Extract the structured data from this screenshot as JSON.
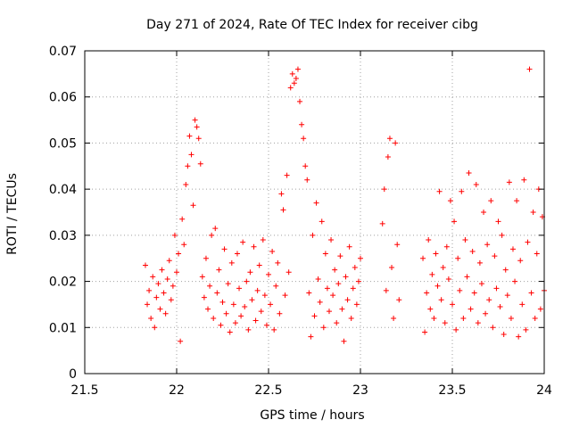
{
  "chart_data": {
    "type": "scatter",
    "title": "Day 271 of 2024, Rate Of TEC Index for receiver cibg",
    "xlabel": "GPS time / hours",
    "ylabel": "ROTI / TECUs",
    "xlim": [
      21.5,
      24
    ],
    "ylim": [
      0,
      0.07
    ],
    "x_ticks": [
      21.5,
      22,
      22.5,
      23,
      23.5,
      24
    ],
    "x_tick_labels": [
      "21.5",
      "22",
      "22.5",
      "23",
      "23.5",
      "24"
    ],
    "y_ticks": [
      0,
      0.01,
      0.02,
      0.03,
      0.04,
      0.05,
      0.06,
      0.07
    ],
    "y_tick_labels": [
      "0",
      "0.01",
      "0.02",
      "0.03",
      "0.04",
      "0.05",
      "0.06",
      "0.07"
    ],
    "grid": true,
    "marker": "+",
    "marker_color": "#ff0000",
    "series": [
      {
        "name": "ROTI",
        "points": [
          [
            21.83,
            0.0235
          ],
          [
            21.84,
            0.015
          ],
          [
            21.85,
            0.018
          ],
          [
            21.86,
            0.012
          ],
          [
            21.87,
            0.021
          ],
          [
            21.88,
            0.01
          ],
          [
            21.89,
            0.0165
          ],
          [
            21.9,
            0.0195
          ],
          [
            21.91,
            0.014
          ],
          [
            21.92,
            0.0225
          ],
          [
            21.93,
            0.0175
          ],
          [
            21.94,
            0.013
          ],
          [
            21.95,
            0.0205
          ],
          [
            21.96,
            0.0245
          ],
          [
            21.97,
            0.016
          ],
          [
            21.98,
            0.019
          ],
          [
            21.99,
            0.03
          ],
          [
            22.0,
            0.022
          ],
          [
            22.01,
            0.026
          ],
          [
            22.02,
            0.007
          ],
          [
            22.03,
            0.0335
          ],
          [
            22.04,
            0.028
          ],
          [
            22.05,
            0.041
          ],
          [
            22.06,
            0.045
          ],
          [
            22.07,
            0.0515
          ],
          [
            22.08,
            0.0475
          ],
          [
            22.09,
            0.0365
          ],
          [
            22.1,
            0.055
          ],
          [
            22.11,
            0.0535
          ],
          [
            22.12,
            0.051
          ],
          [
            22.13,
            0.0455
          ],
          [
            22.14,
            0.021
          ],
          [
            22.15,
            0.0165
          ],
          [
            22.16,
            0.025
          ],
          [
            22.17,
            0.014
          ],
          [
            22.18,
            0.019
          ],
          [
            22.19,
            0.03
          ],
          [
            22.2,
            0.012
          ],
          [
            22.21,
            0.0315
          ],
          [
            22.22,
            0.0175
          ],
          [
            22.23,
            0.0225
          ],
          [
            22.24,
            0.0105
          ],
          [
            22.25,
            0.0155
          ],
          [
            22.26,
            0.027
          ],
          [
            22.27,
            0.013
          ],
          [
            22.28,
            0.0195
          ],
          [
            22.29,
            0.009
          ],
          [
            22.3,
            0.024
          ],
          [
            22.31,
            0.015
          ],
          [
            22.32,
            0.011
          ],
          [
            22.33,
            0.026
          ],
          [
            22.34,
            0.0185
          ],
          [
            22.35,
            0.0125
          ],
          [
            22.36,
            0.0285
          ],
          [
            22.37,
            0.0145
          ],
          [
            22.38,
            0.02
          ],
          [
            22.39,
            0.0095
          ],
          [
            22.4,
            0.022
          ],
          [
            22.41,
            0.016
          ],
          [
            22.42,
            0.0275
          ],
          [
            22.43,
            0.0115
          ],
          [
            22.44,
            0.018
          ],
          [
            22.45,
            0.0235
          ],
          [
            22.46,
            0.0135
          ],
          [
            22.47,
            0.029
          ],
          [
            22.48,
            0.017
          ],
          [
            22.49,
            0.0105
          ],
          [
            22.5,
            0.0215
          ],
          [
            22.51,
            0.015
          ],
          [
            22.52,
            0.0265
          ],
          [
            22.53,
            0.0095
          ],
          [
            22.54,
            0.019
          ],
          [
            22.55,
            0.024
          ],
          [
            22.56,
            0.013
          ],
          [
            22.57,
            0.039
          ],
          [
            22.58,
            0.0355
          ],
          [
            22.59,
            0.017
          ],
          [
            22.6,
            0.043
          ],
          [
            22.61,
            0.022
          ],
          [
            22.62,
            0.062
          ],
          [
            22.63,
            0.065
          ],
          [
            22.64,
            0.063
          ],
          [
            22.65,
            0.064
          ],
          [
            22.66,
            0.066
          ],
          [
            22.67,
            0.059
          ],
          [
            22.68,
            0.054
          ],
          [
            22.69,
            0.051
          ],
          [
            22.7,
            0.045
          ],
          [
            22.71,
            0.042
          ],
          [
            22.72,
            0.0175
          ],
          [
            22.73,
            0.008
          ],
          [
            22.74,
            0.03
          ],
          [
            22.75,
            0.0125
          ],
          [
            22.76,
            0.037
          ],
          [
            22.77,
            0.0205
          ],
          [
            22.78,
            0.0155
          ],
          [
            22.79,
            0.033
          ],
          [
            22.8,
            0.01
          ],
          [
            22.81,
            0.026
          ],
          [
            22.82,
            0.0185
          ],
          [
            22.83,
            0.0135
          ],
          [
            22.84,
            0.029
          ],
          [
            22.85,
            0.017
          ],
          [
            22.86,
            0.0225
          ],
          [
            22.87,
            0.011
          ],
          [
            22.88,
            0.0195
          ],
          [
            22.89,
            0.0255
          ],
          [
            22.9,
            0.014
          ],
          [
            22.91,
            0.007
          ],
          [
            22.92,
            0.021
          ],
          [
            22.93,
            0.016
          ],
          [
            22.94,
            0.0275
          ],
          [
            22.95,
            0.012
          ],
          [
            22.96,
            0.0185
          ],
          [
            22.97,
            0.023
          ],
          [
            22.98,
            0.015
          ],
          [
            22.99,
            0.02
          ],
          [
            23.0,
            0.025
          ],
          [
            23.12,
            0.0325
          ],
          [
            23.13,
            0.04
          ],
          [
            23.14,
            0.018
          ],
          [
            23.15,
            0.047
          ],
          [
            23.16,
            0.051
          ],
          [
            23.17,
            0.023
          ],
          [
            23.18,
            0.012
          ],
          [
            23.19,
            0.05
          ],
          [
            23.2,
            0.028
          ],
          [
            23.21,
            0.016
          ],
          [
            23.34,
            0.025
          ],
          [
            23.35,
            0.009
          ],
          [
            23.36,
            0.0175
          ],
          [
            23.37,
            0.029
          ],
          [
            23.38,
            0.014
          ],
          [
            23.39,
            0.0215
          ],
          [
            23.4,
            0.012
          ],
          [
            23.41,
            0.026
          ],
          [
            23.42,
            0.019
          ],
          [
            23.43,
            0.0395
          ],
          [
            23.44,
            0.016
          ],
          [
            23.45,
            0.023
          ],
          [
            23.46,
            0.011
          ],
          [
            23.47,
            0.0275
          ],
          [
            23.48,
            0.0205
          ],
          [
            23.49,
            0.0375
          ],
          [
            23.5,
            0.015
          ],
          [
            23.51,
            0.033
          ],
          [
            23.52,
            0.0095
          ],
          [
            23.53,
            0.025
          ],
          [
            23.54,
            0.018
          ],
          [
            23.55,
            0.0395
          ],
          [
            23.56,
            0.012
          ],
          [
            23.57,
            0.029
          ],
          [
            23.58,
            0.021
          ],
          [
            23.59,
            0.0435
          ],
          [
            23.6,
            0.014
          ],
          [
            23.61,
            0.0265
          ],
          [
            23.62,
            0.0175
          ],
          [
            23.63,
            0.041
          ],
          [
            23.64,
            0.011
          ],
          [
            23.65,
            0.024
          ],
          [
            23.66,
            0.0195
          ],
          [
            23.67,
            0.035
          ],
          [
            23.68,
            0.013
          ],
          [
            23.69,
            0.028
          ],
          [
            23.7,
            0.016
          ],
          [
            23.71,
            0.0375
          ],
          [
            23.72,
            0.01
          ],
          [
            23.73,
            0.0255
          ],
          [
            23.74,
            0.0185
          ],
          [
            23.75,
            0.033
          ],
          [
            23.76,
            0.0145
          ],
          [
            23.77,
            0.03
          ],
          [
            23.78,
            0.0085
          ],
          [
            23.79,
            0.0225
          ],
          [
            23.8,
            0.017
          ],
          [
            23.81,
            0.0415
          ],
          [
            23.82,
            0.012
          ],
          [
            23.83,
            0.027
          ],
          [
            23.84,
            0.02
          ],
          [
            23.85,
            0.0375
          ],
          [
            23.86,
            0.008
          ],
          [
            23.87,
            0.0245
          ],
          [
            23.88,
            0.015
          ],
          [
            23.89,
            0.042
          ],
          [
            23.9,
            0.0095
          ],
          [
            23.91,
            0.0285
          ],
          [
            23.92,
            0.066
          ],
          [
            23.93,
            0.0175
          ],
          [
            23.94,
            0.035
          ],
          [
            23.95,
            0.012
          ],
          [
            23.96,
            0.026
          ],
          [
            23.97,
            0.04
          ],
          [
            23.98,
            0.014
          ],
          [
            23.99,
            0.034
          ],
          [
            24.0,
            0.018
          ]
        ]
      }
    ]
  }
}
